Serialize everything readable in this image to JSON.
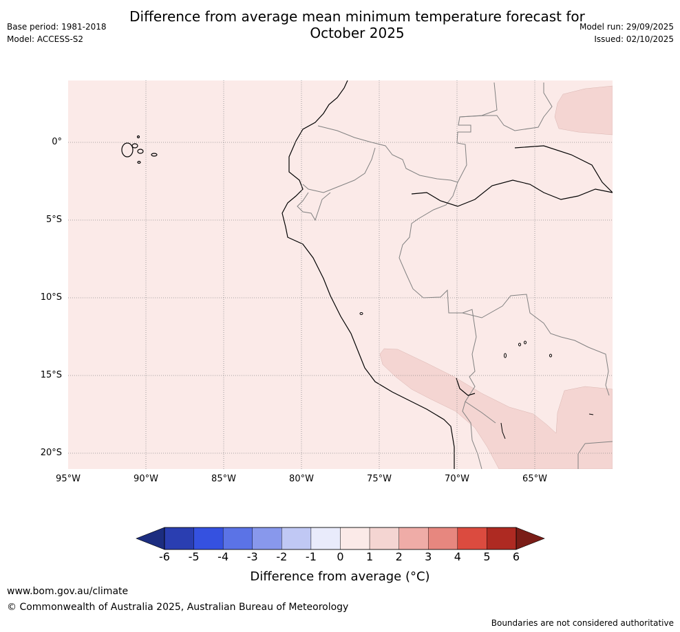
{
  "title_line1": "Difference from average mean minimum temperature forecast for",
  "title_line2": "October 2025",
  "meta_left": [
    "Base period: 1981-2018",
    "Model: ACCESS-S2"
  ],
  "meta_right": [
    "Model run: 29/09/2025",
    "Issued: 02/10/2025"
  ],
  "map": {
    "lat_labels": [
      "0°",
      "5°S",
      "10°S",
      "15°S",
      "20°S"
    ],
    "lon_labels": [
      "95°W",
      "90°W",
      "85°W",
      "80°W",
      "75°W",
      "70°W",
      "65°W"
    ],
    "extent": {
      "lon_min": -95,
      "lon_max": -60,
      "lat_min": -21,
      "lat_max": 4
    }
  },
  "colorbar": {
    "ticks": [
      "-6",
      "-5",
      "-4",
      "-3",
      "-2",
      "-1",
      "0",
      "1",
      "2",
      "3",
      "4",
      "5",
      "6"
    ],
    "colors": [
      "#2a3eb1",
      "#3551e0",
      "#5b73e6",
      "#8898ec",
      "#c0c8f4",
      "#e9ebfb",
      "#fbeae8",
      "#f4d5d2",
      "#efaca7",
      "#e7877f",
      "#db4b3f",
      "#ae2a22"
    ],
    "under_color": "#1c2d80",
    "over_color": "#7a1d17",
    "label": "Difference from average (°C)"
  },
  "footer": {
    "url": "www.bom.gov.au/climate",
    "copyright": "© Commonwealth of Australia 2025, Australian Bureau of Meteorology",
    "disclaimer": "Boundaries are not considered authoritative"
  }
}
